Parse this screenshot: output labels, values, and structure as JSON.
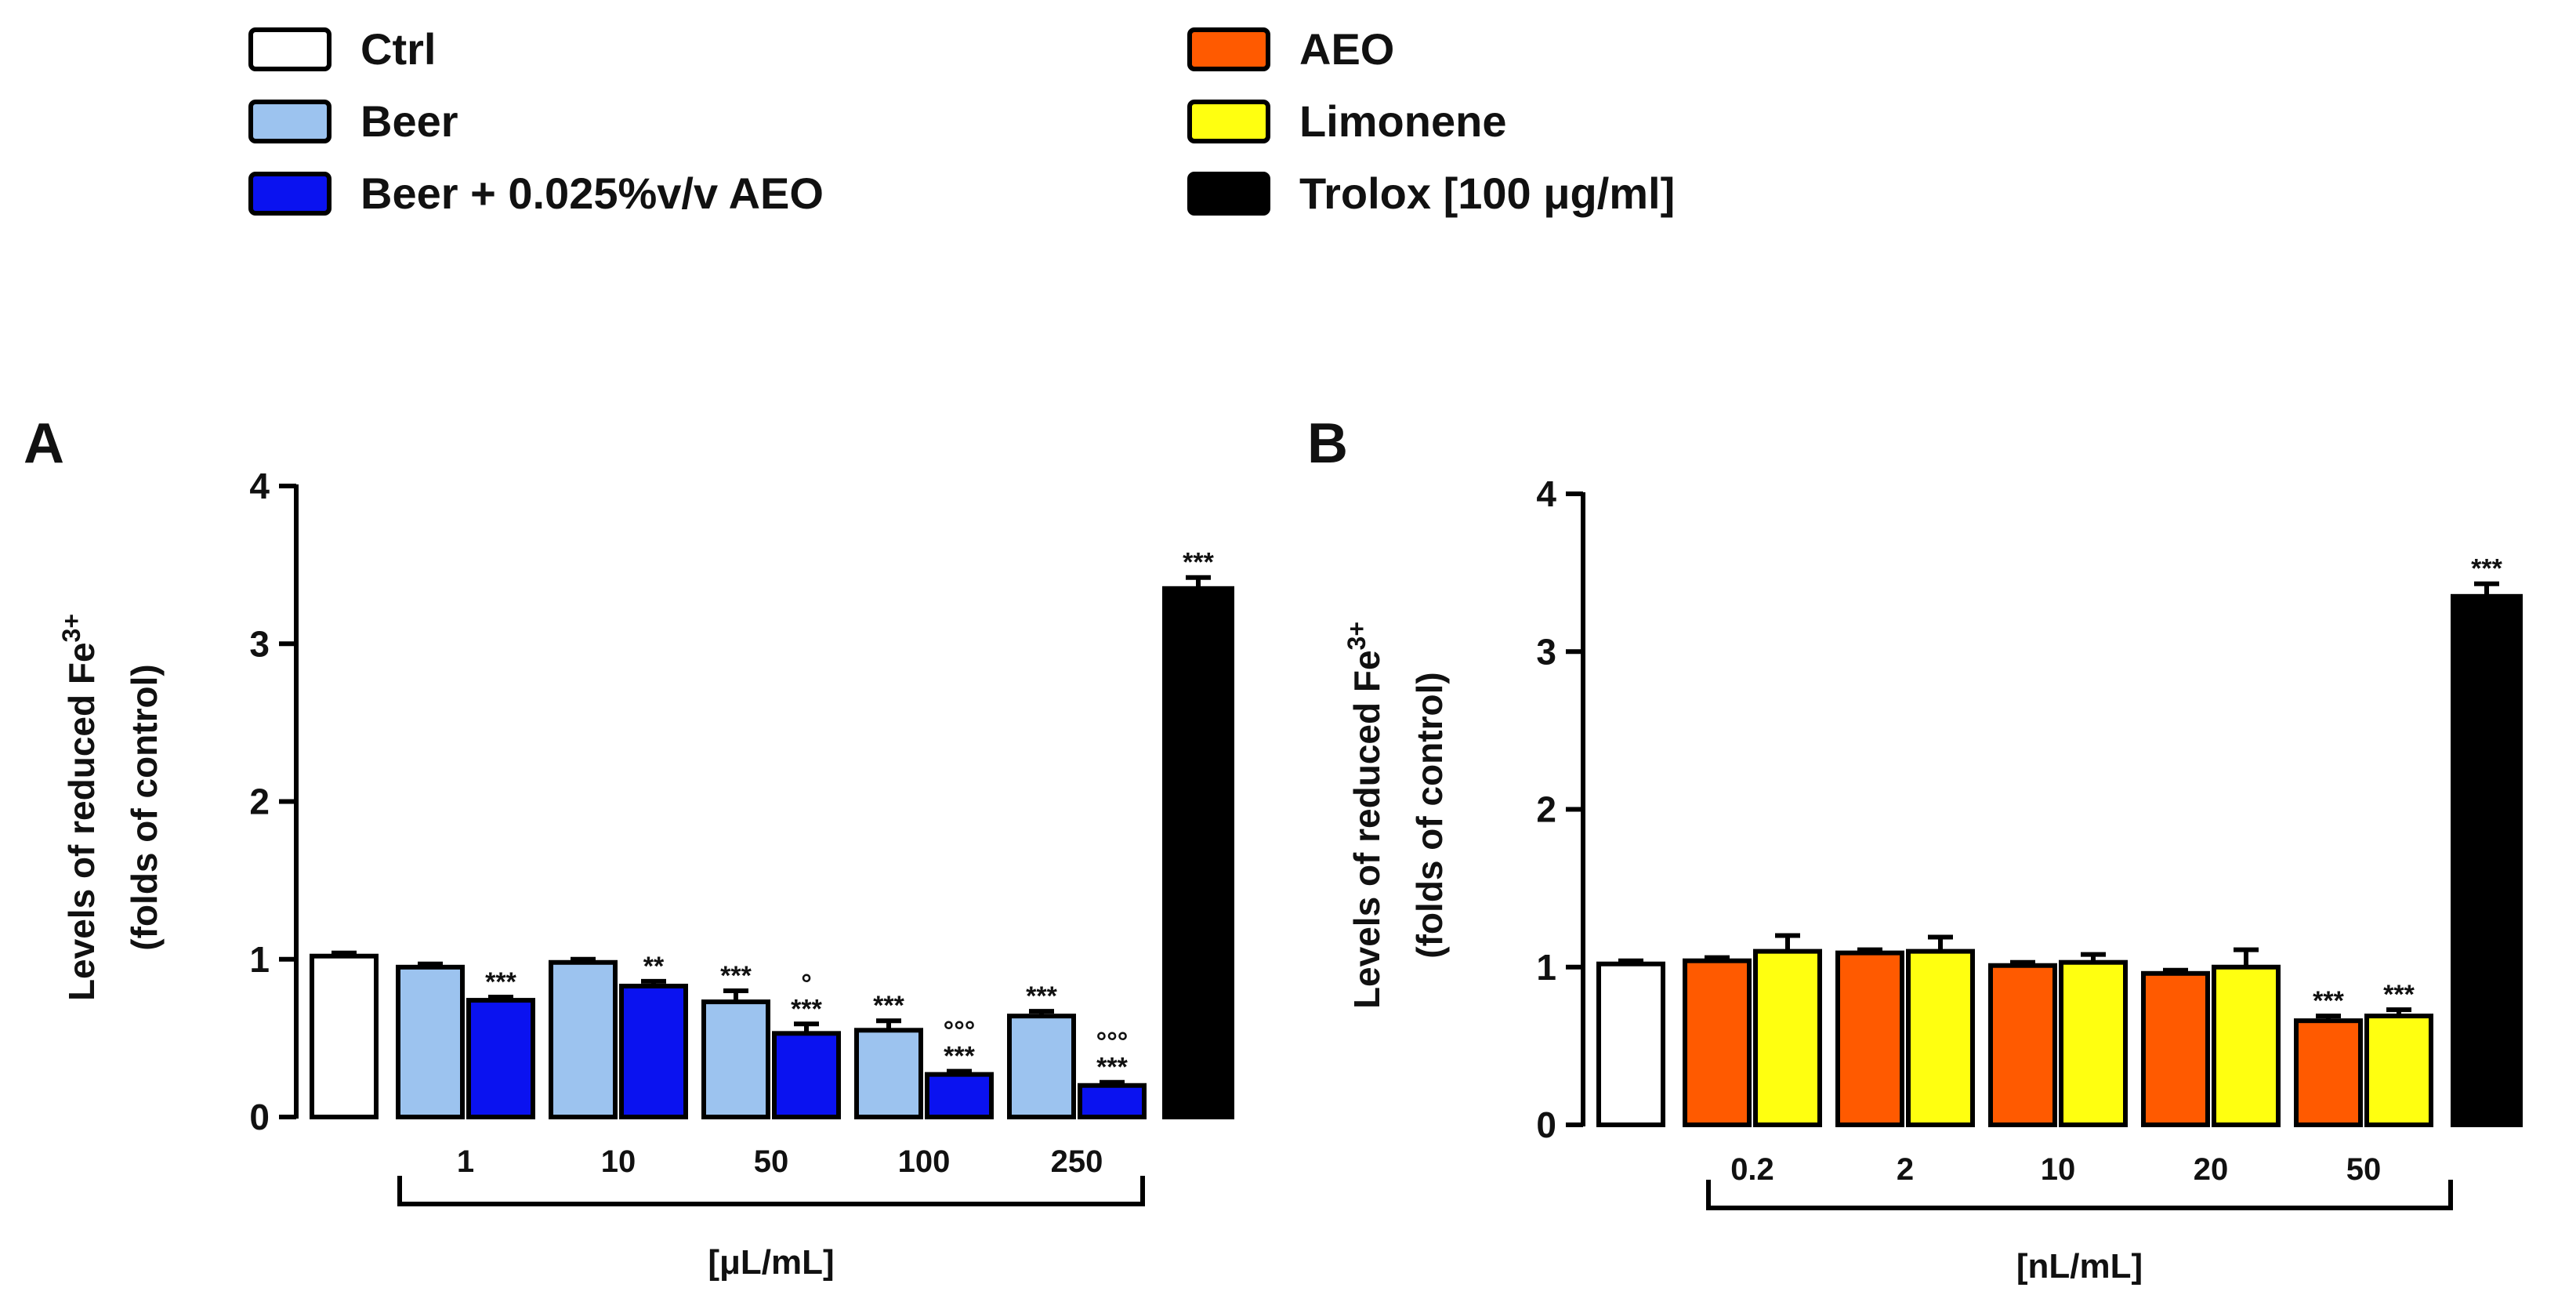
{
  "legend": [
    {
      "label": "Ctrl",
      "color": "#ffffff"
    },
    {
      "label": "Beer",
      "color": "#9cc3ef"
    },
    {
      "label": "Beer + 0.025%v/v AEO",
      "color": "#0a12f0"
    },
    {
      "label": "AEO",
      "color": "#ff5a00"
    },
    {
      "label": "Limonene",
      "color": "#ffff10"
    },
    {
      "label": "Trolox [100 μg/ml]",
      "color": "#000000"
    }
  ],
  "chart_data": [
    {
      "panel": "A",
      "type": "bar",
      "ylabel_line1": "Levels of reduced Fe",
      "ylabel_sup": "3+",
      "ylabel_line2": "(folds of control)",
      "ylim": [
        0,
        4
      ],
      "yticks": [
        "0",
        "1",
        "2",
        "3",
        "4"
      ],
      "unit_label": "[μL/mL]",
      "categories": [
        "1",
        "10",
        "50",
        "100",
        "250"
      ],
      "ctrl": {
        "value": 1.02,
        "err": 0.02
      },
      "series": [
        {
          "name": "Beer",
          "color": "#9cc3ef",
          "values": [
            0.95,
            0.98,
            0.73,
            0.55,
            0.64
          ],
          "errors": [
            0.02,
            0.02,
            0.07,
            0.06,
            0.03
          ],
          "sig": [
            "",
            "",
            "***",
            "***",
            "***"
          ],
          "sig2": [
            "",
            "",
            "",
            "",
            ""
          ]
        },
        {
          "name": "Beer + 0.025%v/v AEO",
          "color": "#0a12f0",
          "values": [
            0.74,
            0.83,
            0.53,
            0.27,
            0.2
          ],
          "errors": [
            0.02,
            0.03,
            0.06,
            0.02,
            0.02
          ],
          "sig": [
            "***",
            "**",
            "***",
            "***",
            "***"
          ],
          "sig2": [
            "",
            "",
            "°",
            "°°°",
            "°°°"
          ]
        }
      ],
      "trolox": {
        "value": 3.35,
        "err": 0.07,
        "sig": "***"
      }
    },
    {
      "panel": "B",
      "type": "bar",
      "ylabel_line1": "Levels of reduced Fe",
      "ylabel_sup": "3+",
      "ylabel_line2": "(folds of control)",
      "ylim": [
        0,
        4
      ],
      "yticks": [
        "0",
        "1",
        "2",
        "3",
        "4"
      ],
      "unit_label": "[nL/mL]",
      "categories": [
        "0.2",
        "2",
        "10",
        "20",
        "50"
      ],
      "ctrl": {
        "value": 1.02,
        "err": 0.02
      },
      "series": [
        {
          "name": "AEO",
          "color": "#ff5a00",
          "values": [
            1.04,
            1.09,
            1.01,
            0.96,
            0.66
          ],
          "errors": [
            0.02,
            0.02,
            0.02,
            0.02,
            0.03
          ],
          "sig": [
            "",
            "",
            "",
            "",
            "***"
          ],
          "sig2": [
            "",
            "",
            "",
            "",
            ""
          ]
        },
        {
          "name": "Limonene",
          "color": "#ffff10",
          "values": [
            1.1,
            1.1,
            1.03,
            1.0,
            0.69
          ],
          "errors": [
            0.1,
            0.09,
            0.05,
            0.11,
            0.04
          ],
          "sig": [
            "",
            "",
            "",
            "",
            "***"
          ],
          "sig2": [
            "",
            "",
            "",
            "",
            ""
          ]
        }
      ],
      "trolox": {
        "value": 3.35,
        "err": 0.08,
        "sig": "***"
      }
    }
  ]
}
